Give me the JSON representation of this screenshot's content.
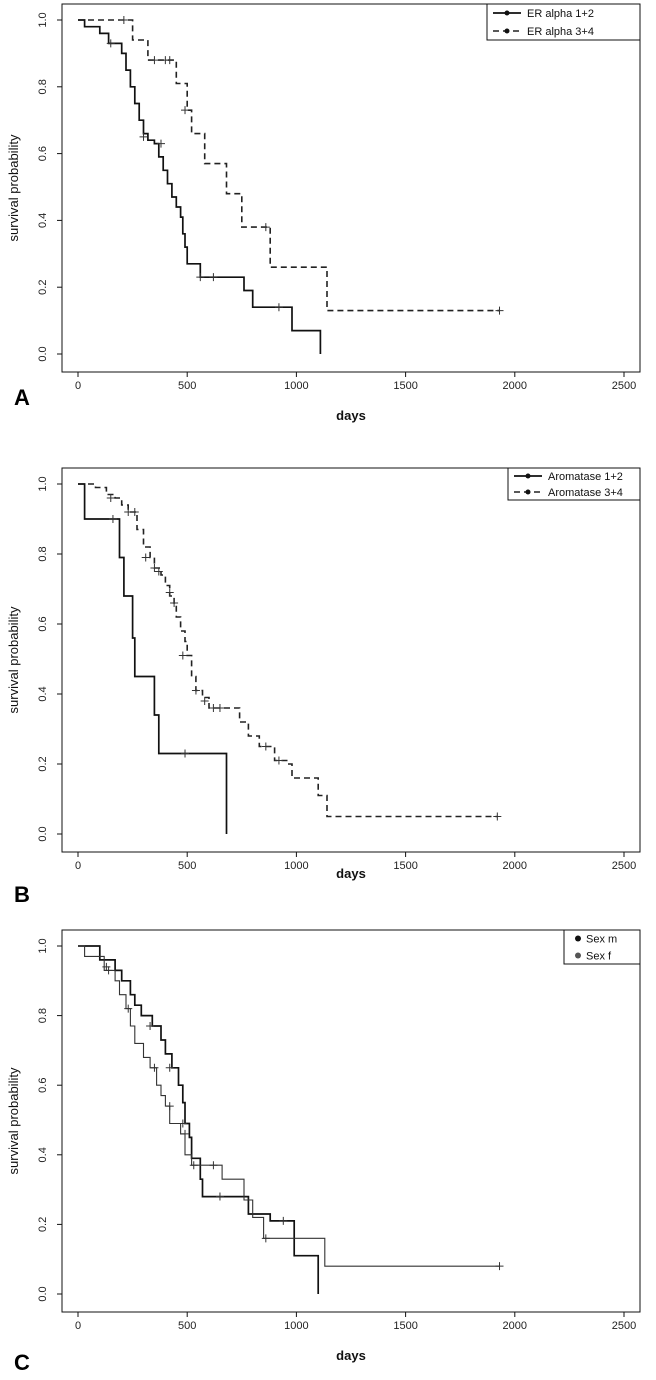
{
  "chart_data": [
    {
      "type": "line",
      "panel_label": "A",
      "xlabel": "days",
      "ylabel": "survival probability",
      "xlim": [
        0,
        2500
      ],
      "ylim": [
        0,
        1
      ],
      "xticks": [
        "0",
        "500",
        "1000",
        "1500",
        "2000",
        "2500"
      ],
      "yticks": [
        "0.0",
        "0.2",
        "0.4",
        "0.6",
        "0.8",
        "1.0"
      ],
      "legend": {
        "placement": "top-right"
      },
      "series": [
        {
          "name": "ER alpha 1+2",
          "style": "solid",
          "steps": [
            [
              0,
              1.0
            ],
            [
              30,
              0.98
            ],
            [
              100,
              0.96
            ],
            [
              140,
              0.93
            ],
            [
              200,
              0.9
            ],
            [
              220,
              0.85
            ],
            [
              240,
              0.8
            ],
            [
              260,
              0.75
            ],
            [
              280,
              0.7
            ],
            [
              300,
              0.66
            ],
            [
              320,
              0.64
            ],
            [
              350,
              0.63
            ],
            [
              370,
              0.59
            ],
            [
              390,
              0.55
            ],
            [
              410,
              0.51
            ],
            [
              430,
              0.47
            ],
            [
              450,
              0.44
            ],
            [
              470,
              0.41
            ],
            [
              480,
              0.36
            ],
            [
              490,
              0.32
            ],
            [
              500,
              0.27
            ],
            [
              560,
              0.23
            ],
            [
              760,
              0.19
            ],
            [
              800,
              0.14
            ],
            [
              980,
              0.07
            ],
            [
              1110,
              0.0
            ]
          ],
          "censored": [
            [
              150,
              0.93
            ],
            [
              300,
              0.65
            ],
            [
              380,
              0.63
            ],
            [
              560,
              0.23
            ],
            [
              620,
              0.23
            ],
            [
              920,
              0.14
            ]
          ]
        },
        {
          "name": "ER alpha 3+4",
          "style": "dashed",
          "steps": [
            [
              0,
              1.0
            ],
            [
              250,
              0.94
            ],
            [
              320,
              0.88
            ],
            [
              450,
              0.81
            ],
            [
              500,
              0.73
            ],
            [
              520,
              0.66
            ],
            [
              580,
              0.57
            ],
            [
              680,
              0.48
            ],
            [
              750,
              0.38
            ],
            [
              880,
              0.26
            ],
            [
              1140,
              0.13
            ],
            [
              1930,
              0.13
            ]
          ],
          "censored": [
            [
              210,
              1.0
            ],
            [
              350,
              0.88
            ],
            [
              400,
              0.88
            ],
            [
              420,
              0.88
            ],
            [
              490,
              0.73
            ],
            [
              860,
              0.38
            ],
            [
              1930,
              0.13
            ]
          ]
        }
      ]
    },
    {
      "type": "line",
      "panel_label": "B",
      "xlabel": "days",
      "ylabel": "survival probability",
      "xlim": [
        0,
        2500
      ],
      "ylim": [
        0,
        1
      ],
      "xticks": [
        "0",
        "500",
        "1000",
        "1500",
        "2000",
        "2500"
      ],
      "yticks": [
        "0.0",
        "0.2",
        "0.4",
        "0.6",
        "0.8",
        "1.0"
      ],
      "legend": {
        "placement": "top-right"
      },
      "series": [
        {
          "name": "Aromatase 1+2",
          "style": "solid",
          "steps": [
            [
              0,
              1.0
            ],
            [
              30,
              0.9
            ],
            [
              190,
              0.79
            ],
            [
              210,
              0.68
            ],
            [
              250,
              0.56
            ],
            [
              260,
              0.45
            ],
            [
              350,
              0.34
            ],
            [
              370,
              0.23
            ],
            [
              680,
              0.0
            ]
          ],
          "censored": [
            [
              160,
              0.9
            ],
            [
              490,
              0.23
            ]
          ]
        },
        {
          "name": "Aromatase 3+4",
          "style": "dashed",
          "steps": [
            [
              0,
              1.0
            ],
            [
              80,
              0.99
            ],
            [
              130,
              0.97
            ],
            [
              170,
              0.96
            ],
            [
              200,
              0.94
            ],
            [
              230,
              0.92
            ],
            [
              270,
              0.87
            ],
            [
              300,
              0.82
            ],
            [
              330,
              0.79
            ],
            [
              350,
              0.76
            ],
            [
              380,
              0.74
            ],
            [
              400,
              0.71
            ],
            [
              420,
              0.68
            ],
            [
              440,
              0.65
            ],
            [
              450,
              0.62
            ],
            [
              470,
              0.58
            ],
            [
              490,
              0.55
            ],
            [
              500,
              0.51
            ],
            [
              520,
              0.45
            ],
            [
              540,
              0.41
            ],
            [
              570,
              0.39
            ],
            [
              600,
              0.36
            ],
            [
              740,
              0.32
            ],
            [
              780,
              0.28
            ],
            [
              830,
              0.25
            ],
            [
              900,
              0.21
            ],
            [
              960,
              0.2
            ],
            [
              980,
              0.16
            ],
            [
              1100,
              0.11
            ],
            [
              1140,
              0.05
            ],
            [
              1920,
              0.05
            ]
          ],
          "censored": [
            [
              150,
              0.96
            ],
            [
              230,
              0.92
            ],
            [
              260,
              0.92
            ],
            [
              310,
              0.79
            ],
            [
              350,
              0.76
            ],
            [
              370,
              0.75
            ],
            [
              420,
              0.69
            ],
            [
              440,
              0.66
            ],
            [
              480,
              0.51
            ],
            [
              540,
              0.41
            ],
            [
              580,
              0.38
            ],
            [
              620,
              0.36
            ],
            [
              650,
              0.36
            ],
            [
              860,
              0.25
            ],
            [
              920,
              0.21
            ],
            [
              1920,
              0.05
            ]
          ]
        }
      ]
    },
    {
      "type": "line",
      "panel_label": "C",
      "xlabel": "days",
      "ylabel": "survival probability",
      "xlim": [
        0,
        2500
      ],
      "ylim": [
        0,
        1
      ],
      "xticks": [
        "0",
        "500",
        "1000",
        "1500",
        "2000",
        "2500"
      ],
      "yticks": [
        "0.0",
        "0.2",
        "0.4",
        "0.6",
        "0.8",
        "1.0"
      ],
      "legend": {
        "placement": "top-right"
      },
      "series": [
        {
          "name": "Sex m",
          "style": "solid",
          "steps": [
            [
              0,
              1.0
            ],
            [
              100,
              0.96
            ],
            [
              170,
              0.93
            ],
            [
              200,
              0.9
            ],
            [
              240,
              0.86
            ],
            [
              260,
              0.83
            ],
            [
              290,
              0.8
            ],
            [
              340,
              0.77
            ],
            [
              380,
              0.73
            ],
            [
              400,
              0.69
            ],
            [
              430,
              0.65
            ],
            [
              460,
              0.6
            ],
            [
              480,
              0.55
            ],
            [
              490,
              0.49
            ],
            [
              510,
              0.45
            ],
            [
              520,
              0.39
            ],
            [
              560,
              0.33
            ],
            [
              570,
              0.28
            ],
            [
              780,
              0.23
            ],
            [
              880,
              0.21
            ],
            [
              990,
              0.11
            ],
            [
              1100,
              0.0
            ]
          ],
          "censored": [
            [
              130,
              0.94
            ],
            [
              330,
              0.77
            ],
            [
              420,
              0.65
            ],
            [
              480,
              0.49
            ],
            [
              650,
              0.28
            ],
            [
              940,
              0.21
            ]
          ]
        },
        {
          "name": "Sex f",
          "style": "thin",
          "steps": [
            [
              0,
              1.0
            ],
            [
              30,
              0.97
            ],
            [
              120,
              0.93
            ],
            [
              170,
              0.9
            ],
            [
              190,
              0.86
            ],
            [
              220,
              0.82
            ],
            [
              240,
              0.77
            ],
            [
              260,
              0.72
            ],
            [
              300,
              0.68
            ],
            [
              330,
              0.65
            ],
            [
              360,
              0.6
            ],
            [
              380,
              0.57
            ],
            [
              400,
              0.54
            ],
            [
              420,
              0.49
            ],
            [
              470,
              0.46
            ],
            [
              490,
              0.4
            ],
            [
              520,
              0.37
            ],
            [
              660,
              0.33
            ],
            [
              760,
              0.27
            ],
            [
              800,
              0.22
            ],
            [
              850,
              0.16
            ],
            [
              1130,
              0.08
            ],
            [
              1930,
              0.08
            ]
          ],
          "censored": [
            [
              140,
              0.93
            ],
            [
              230,
              0.82
            ],
            [
              350,
              0.65
            ],
            [
              420,
              0.54
            ],
            [
              490,
              0.46
            ],
            [
              530,
              0.37
            ],
            [
              620,
              0.37
            ],
            [
              860,
              0.16
            ],
            [
              1930,
              0.08
            ]
          ]
        }
      ]
    }
  ]
}
